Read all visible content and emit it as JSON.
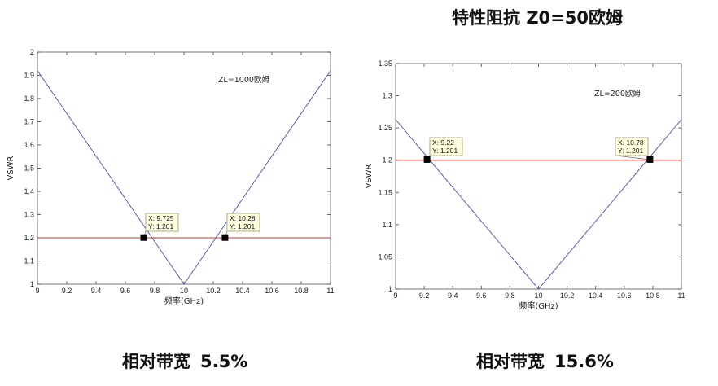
{
  "title": "特性阻抗 Z0=50欧姆",
  "captions": [
    {
      "label": "相对带宽",
      "value": "5.5%"
    },
    {
      "label": "相对带宽",
      "value": "15.6%"
    }
  ],
  "chart_data": [
    {
      "type": "line",
      "xlabel": "频率(GHz)",
      "ylabel": "VSWR",
      "xlim": [
        9,
        11
      ],
      "ylim": [
        1,
        2
      ],
      "xticks": [
        "9",
        "9.2",
        "9.4",
        "9.6",
        "9.8",
        "10",
        "10.2",
        "10.4",
        "10.6",
        "10.8",
        "11"
      ],
      "yticks": [
        "1",
        "1.1",
        "1.2",
        "1.3",
        "1.4",
        "1.5",
        "1.6",
        "1.7",
        "1.8",
        "1.9",
        "2"
      ],
      "annotation": "ZL=1000欧姆",
      "series": [
        {
          "color": "#5561b8",
          "x": [
            9,
            10,
            11
          ],
          "y": [
            1.92,
            1.0,
            1.92
          ]
        },
        {
          "color": "#d62f2f",
          "x": [
            9,
            11
          ],
          "y": [
            1.2,
            1.2
          ]
        }
      ],
      "datatips": [
        {
          "x": 9.725,
          "y": 1.201,
          "line1": "X: 9.725",
          "line2": "Y: 1.201"
        },
        {
          "x": 10.28,
          "y": 1.201,
          "line1": "X: 10.28",
          "line2": "Y: 1.201"
        }
      ]
    },
    {
      "type": "line",
      "xlabel": "频率(GHz)",
      "ylabel": "VSWR",
      "xlim": [
        9,
        11
      ],
      "ylim": [
        1,
        1.35
      ],
      "xticks": [
        "9",
        "9.2",
        "9.4",
        "9.6",
        "9.8",
        "10",
        "10.2",
        "10.4",
        "10.6",
        "10.8",
        "11"
      ],
      "yticks": [
        "1",
        "1.05",
        "1.1",
        "1.15",
        "1.2",
        "1.25",
        "1.3",
        "1.35"
      ],
      "annotation": "ZL=200欧姆",
      "series": [
        {
          "color": "#5561b8",
          "x": [
            9,
            10,
            11
          ],
          "y": [
            1.263,
            1.0,
            1.263
          ]
        },
        {
          "color": "#d62f2f",
          "x": [
            9,
            11
          ],
          "y": [
            1.2,
            1.2
          ]
        }
      ],
      "datatips": [
        {
          "x": 9.22,
          "y": 1.201,
          "line1": "X: 9.22",
          "line2": "Y: 1.201"
        },
        {
          "x": 10.78,
          "y": 1.201,
          "line1": "X: 10.78",
          "line2": "Y: 1.201"
        }
      ]
    }
  ]
}
